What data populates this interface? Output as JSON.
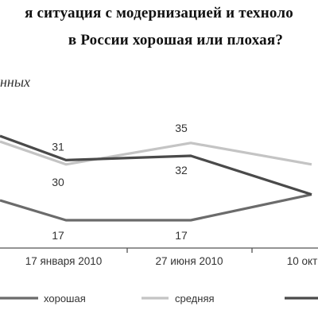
{
  "title_line1": "я ситуация с модернизацией и техноло",
  "title_line2": "в России хорошая или плохая?",
  "ylabel": "нных",
  "chart_data": {
    "type": "line",
    "title": "я ситуация с модернизацией и техноло… в России хорошая или плохая?",
    "categories": [
      "17 января 2010",
      "27 июня 2010",
      "10 окт"
    ],
    "series": [
      {
        "name": "хорошая",
        "color": "#6b6b6b",
        "values": [
          17,
          17,
          23
        ]
      },
      {
        "name": "средняя",
        "color": "#c4c4c4",
        "values": [
          30,
          35,
          30
        ]
      },
      {
        "name": "",
        "color": "#4a4a4a",
        "values": [
          31,
          32,
          23
        ]
      }
    ],
    "data_labels": [
      {
        "series": 2,
        "index": 0,
        "text": "31"
      },
      {
        "series": 1,
        "index": 0,
        "text": "30"
      },
      {
        "series": 1,
        "index": 1,
        "text": "35"
      },
      {
        "series": 2,
        "index": 1,
        "text": "32"
      },
      {
        "series": 0,
        "index": 0,
        "text": "17"
      },
      {
        "series": 0,
        "index": 1,
        "text": "17"
      }
    ],
    "legend": [
      "хорошая",
      "средняя",
      ""
    ],
    "legend_position": "bottom",
    "grid": false
  }
}
